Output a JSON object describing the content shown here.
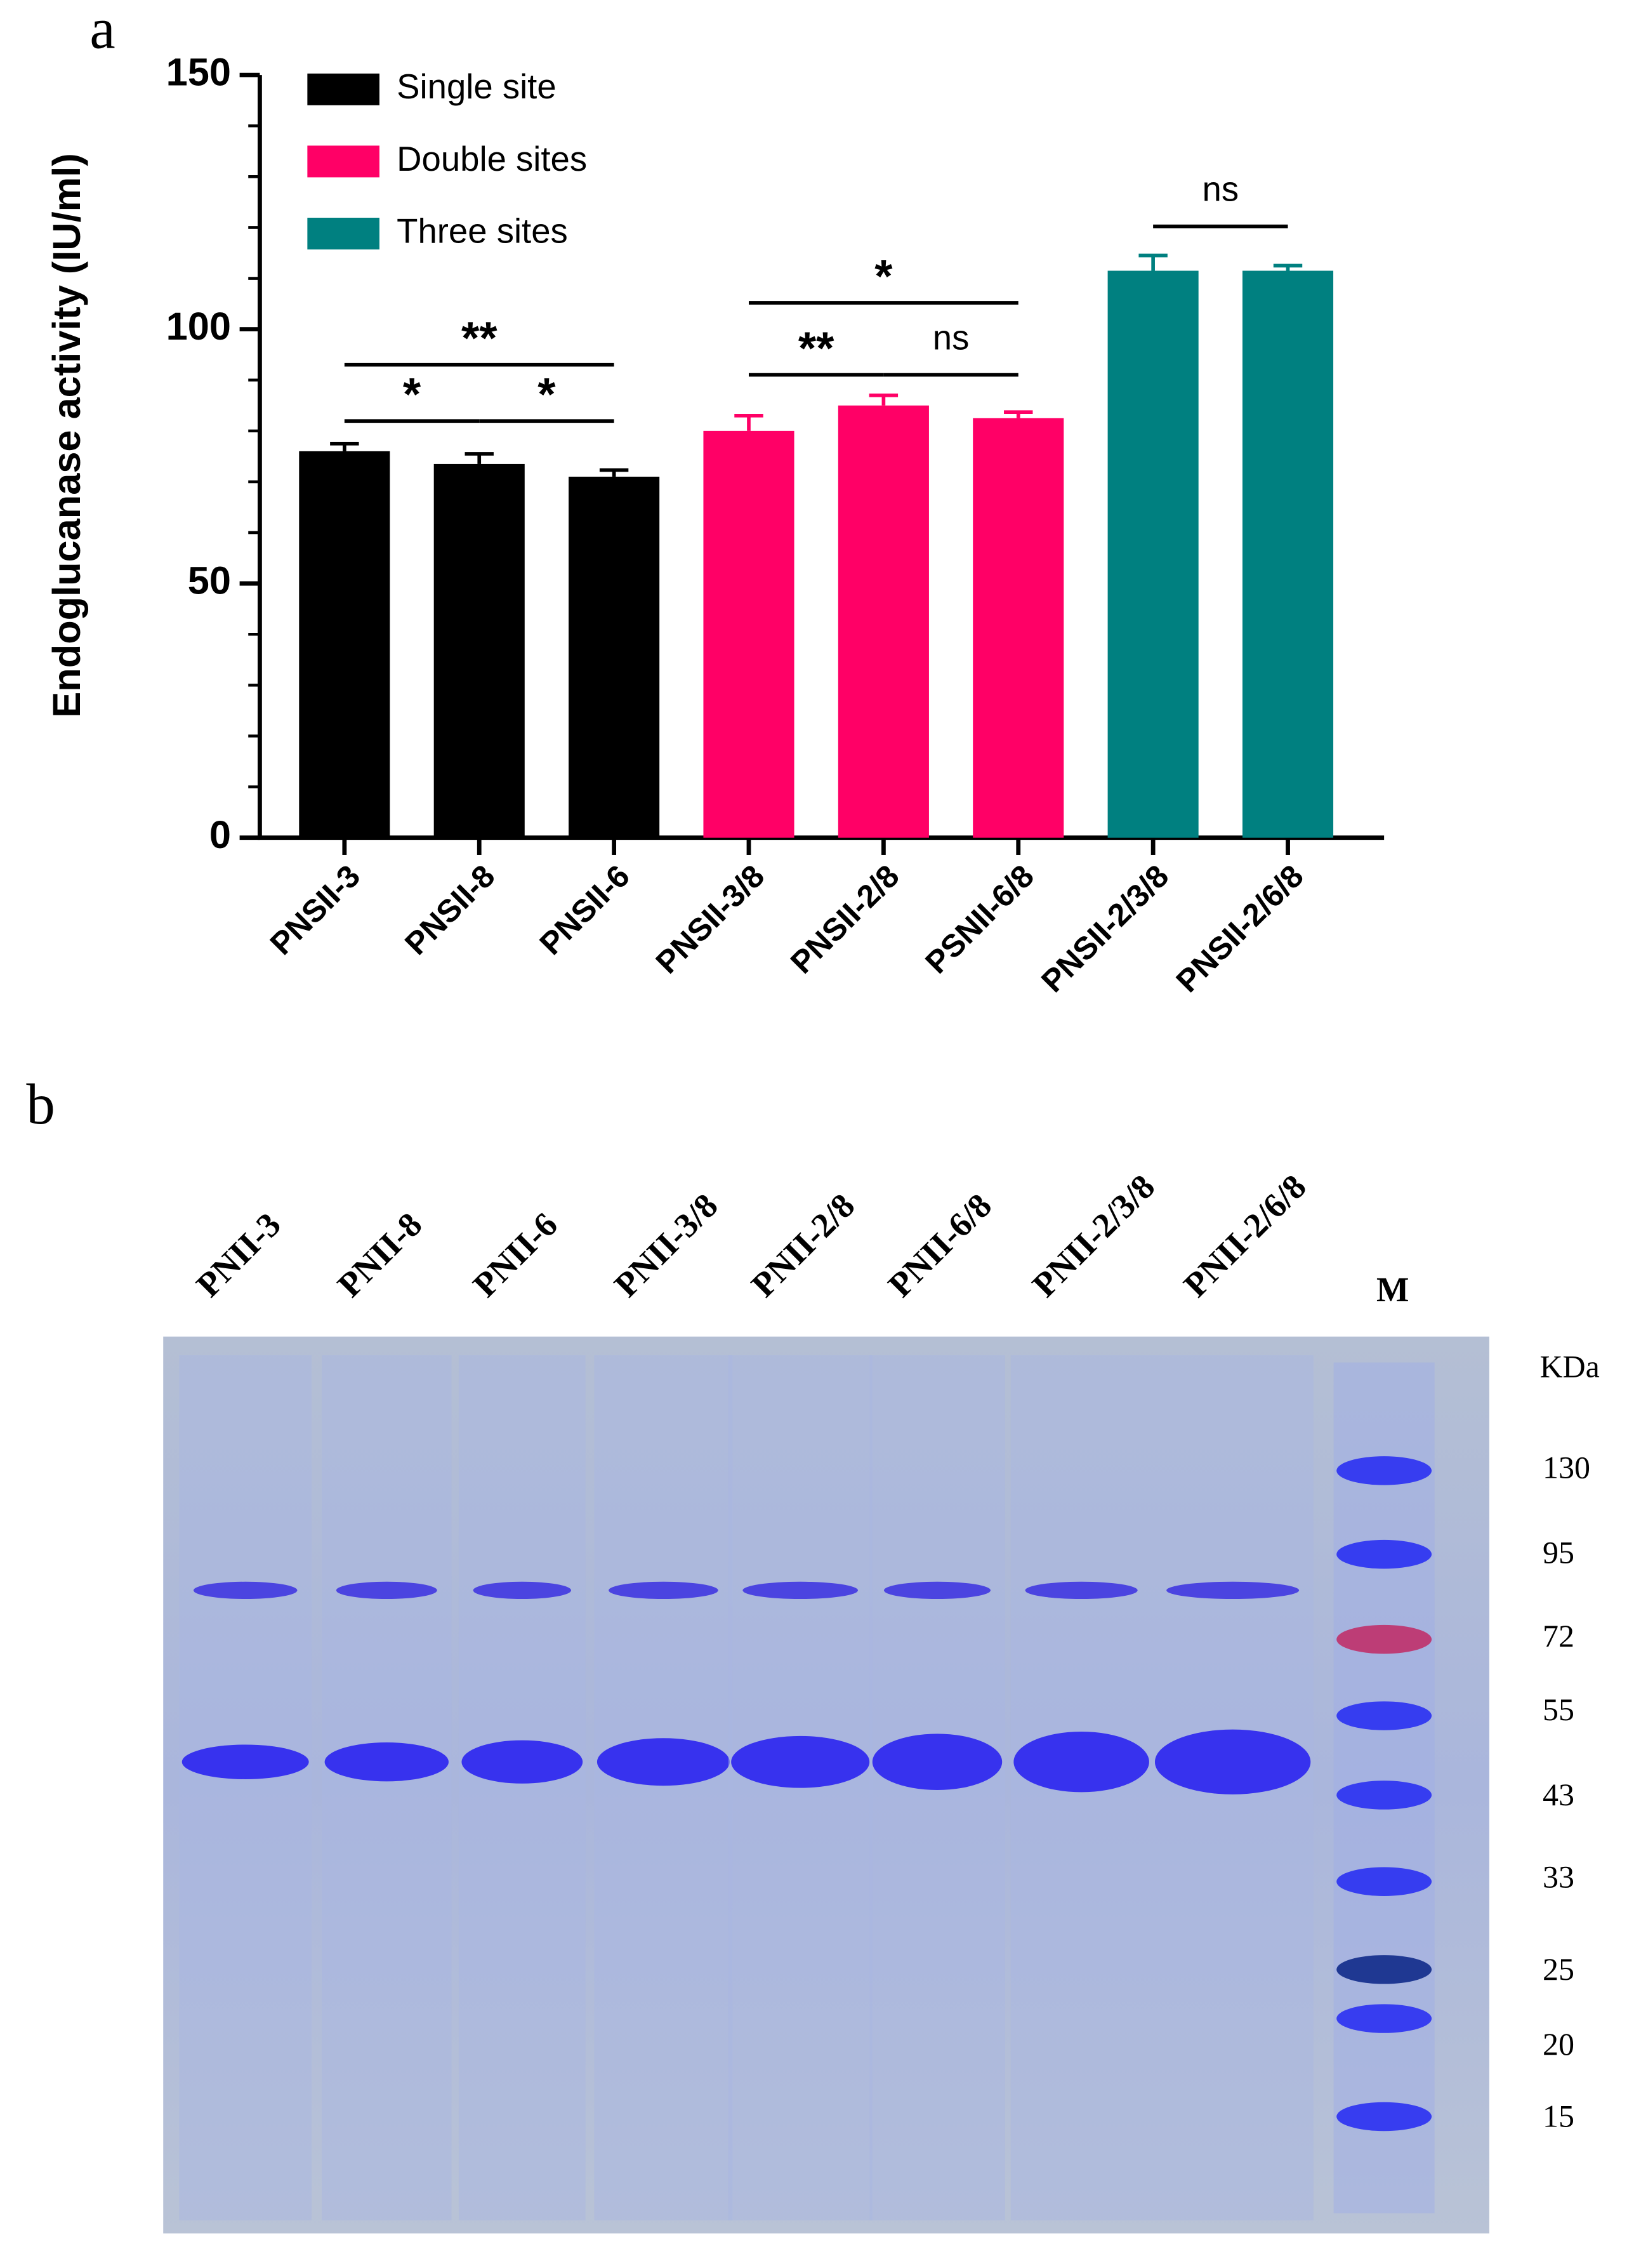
{
  "chart_data": {
    "type": "bar",
    "panel_label": "a",
    "y_label": "Endoglucanase activity  (IU/ml)",
    "categories": [
      "PNSII-3",
      "PNSII-8",
      "PNSII-6",
      "PNSII-3/8",
      "PNSII-2/8",
      "PSNII-6/8",
      "PNSII-2/3/8",
      "PNSII-2/6/8"
    ],
    "series": [
      {
        "name": "Single site",
        "color": "#000000",
        "values": [
          76,
          73.5,
          71,
          null,
          null,
          null,
          null,
          null
        ],
        "errors": [
          1.5,
          2,
          1.3,
          null,
          null,
          null,
          null,
          null
        ]
      },
      {
        "name": "Double sites",
        "color": "#ff0066",
        "values": [
          null,
          null,
          null,
          80,
          85,
          82.5,
          null,
          null
        ],
        "errors": [
          null,
          null,
          null,
          3,
          2,
          1.2,
          null,
          null
        ]
      },
      {
        "name": "Three sites",
        "color": "#008080",
        "values": [
          null,
          null,
          null,
          null,
          null,
          null,
          111.5,
          111.5
        ],
        "errors": [
          null,
          null,
          null,
          null,
          null,
          null,
          3,
          1
        ]
      }
    ],
    "ylim": [
      0,
      150
    ],
    "yticks": [
      0,
      50,
      100,
      150
    ],
    "minor_yticks": [
      10,
      20,
      30,
      40,
      60,
      70,
      80,
      90,
      110,
      120,
      130,
      140
    ],
    "significance": [
      {
        "text": "*",
        "from": 0,
        "to": 1
      },
      {
        "text": "*",
        "from": 1,
        "to": 2
      },
      {
        "text": "**",
        "from": 0,
        "to": 2
      },
      {
        "text": "**",
        "from": 3,
        "to": 4
      },
      {
        "text": "ns",
        "from": 4,
        "to": 5
      },
      {
        "text": "*",
        "from": 3,
        "to": 5
      },
      {
        "text": "ns",
        "from": 6,
        "to": 7
      }
    ],
    "legend": "top-left"
  },
  "gel": {
    "panel_label": "b",
    "lanes": [
      "PNII-3",
      "PNII-8",
      "PNII-6",
      "PNII-3/8",
      "PNII-2/8",
      "PNII-6/8",
      "PNII-2/3/8",
      "PNII-2/6/8"
    ],
    "marker_lane": "M",
    "unit": "KDa",
    "marker_sizes": [
      130,
      95,
      72,
      55,
      43,
      33,
      25,
      20,
      15
    ]
  }
}
